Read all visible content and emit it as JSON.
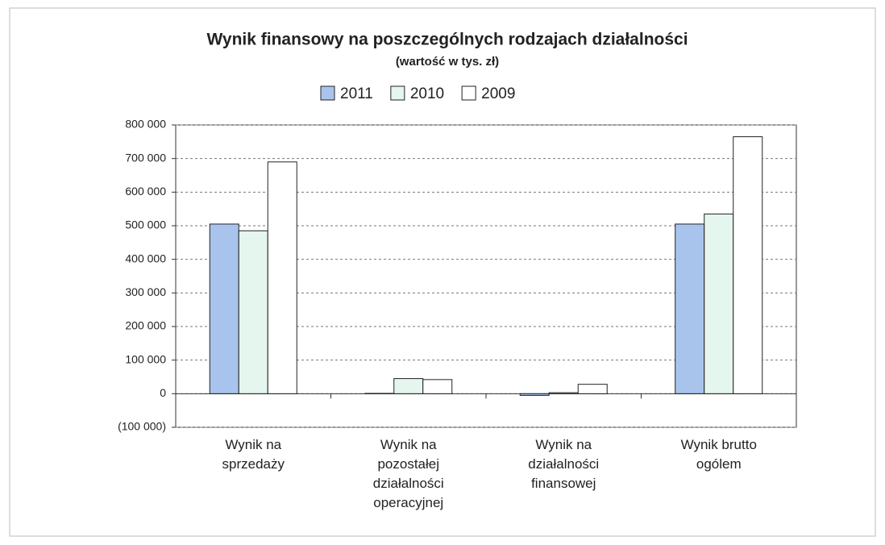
{
  "chart_data": {
    "type": "bar",
    "title": "Wynik finansowy na poszczególnych rodzajach działalności",
    "subtitle": "(wartość w tys. zł)",
    "categories": [
      "Wynik na sprzedaży",
      "Wynik na pozostałej działalności operacyjnej",
      "Wynik na działalności finansowej",
      "Wynik brutto ogólem"
    ],
    "series": [
      {
        "name": "2011",
        "color": "#a9c4ec",
        "values": [
          505000,
          1000,
          -5000,
          505000
        ]
      },
      {
        "name": "2010",
        "color": "#e4f6ee",
        "values": [
          485000,
          45000,
          3000,
          535000
        ]
      },
      {
        "name": "2009",
        "color": "#ffffff",
        "values": [
          690000,
          42000,
          28000,
          765000
        ]
      }
    ],
    "ylim": [
      -100000,
      800000
    ],
    "yticks": [
      {
        "value": -100000,
        "label": "(100 000)"
      },
      0,
      {
        "value": 100000,
        "label": "100 000"
      },
      {
        "value": 200000,
        "label": "200 000"
      },
      {
        "value": 300000,
        "label": "300 000"
      },
      {
        "value": 400000,
        "label": "400 000"
      },
      {
        "value": 500000,
        "label": "500 000"
      },
      {
        "value": 600000,
        "label": "600 000"
      },
      {
        "value": 700000,
        "label": "700 000"
      },
      {
        "value": 800000,
        "label": "800 000"
      }
    ],
    "grid": true
  }
}
